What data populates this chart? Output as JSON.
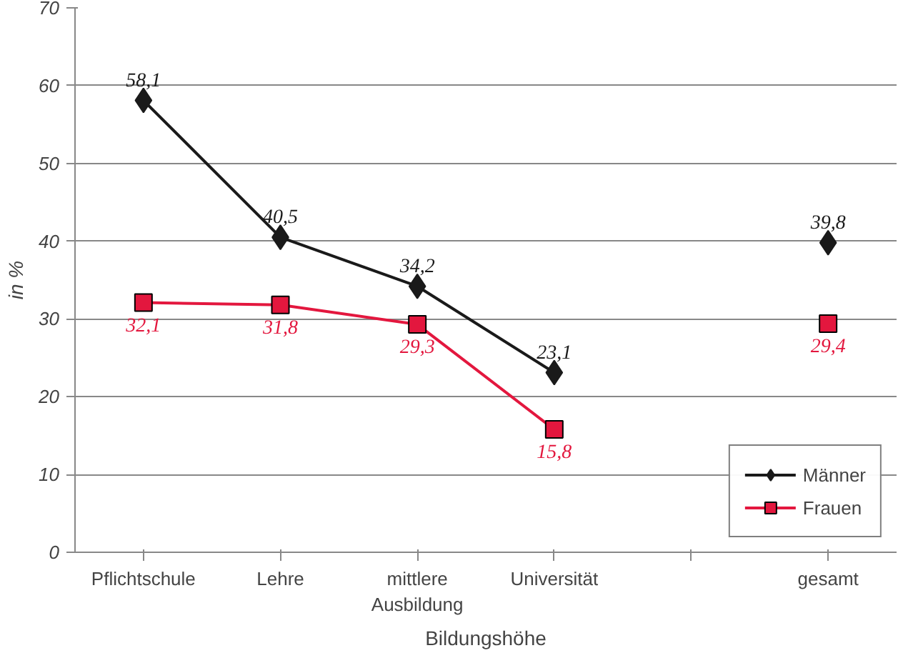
{
  "chart_data": {
    "type": "line",
    "xlabel": "Bildungshöhe",
    "ylabel": "in %",
    "categories": [
      "Pflichtschule",
      "Lehre",
      "mittlere\nAusbildung",
      "Universität",
      null,
      "gesamt"
    ],
    "series": [
      {
        "name": "Männer",
        "color": "#1a1a1a",
        "marker": "diamond",
        "values": [
          58.1,
          40.5,
          34.2,
          23.1,
          null,
          39.8
        ],
        "value_labels": [
          "58,1",
          "40,5",
          "34,2",
          "23,1",
          null,
          "39,8"
        ]
      },
      {
        "name": "Frauen",
        "color": "#e3173e",
        "marker": "square",
        "values": [
          32.1,
          31.8,
          29.3,
          15.8,
          null,
          29.4
        ],
        "value_labels": [
          "32,1",
          "31,8",
          "29,3",
          "15,8",
          null,
          "29,4"
        ]
      }
    ],
    "ylim": [
      0,
      70
    ],
    "yticks": [
      0,
      10,
      20,
      30,
      40,
      50,
      60,
      70
    ],
    "grid": "y",
    "legend": "bottom right",
    "line_style": "solid"
  }
}
